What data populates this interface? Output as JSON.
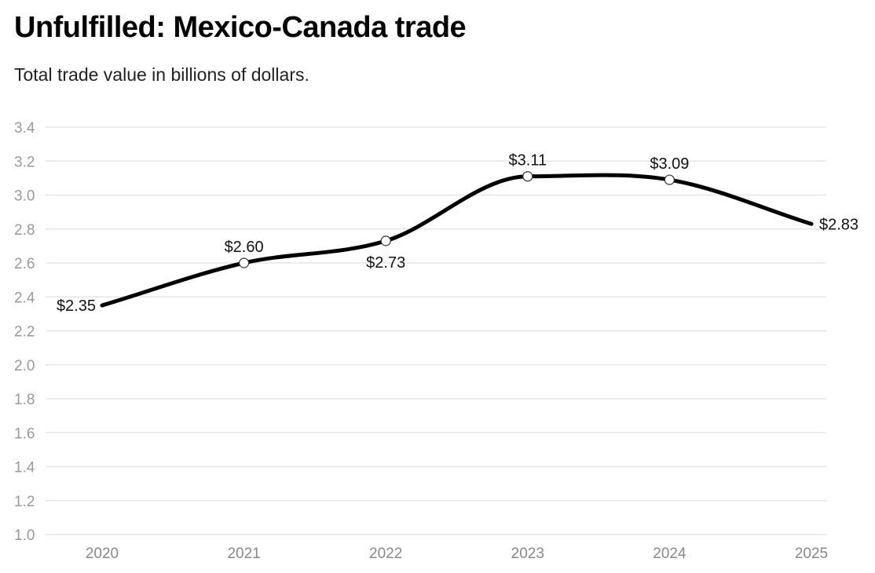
{
  "chart_data": {
    "type": "line",
    "title": "Unfulfilled: Mexico-Canada trade",
    "subtitle": "Total trade value in billions of dollars.",
    "xlabel": "",
    "ylabel": "",
    "categories": [
      "2020",
      "2021",
      "2022",
      "2023",
      "2024",
      "2025"
    ],
    "values": [
      2.35,
      2.6,
      2.73,
      3.11,
      3.09,
      2.83
    ],
    "data_labels": [
      "$2.35",
      "$2.60",
      "$2.73",
      "$3.11",
      "$3.09",
      "$2.83"
    ],
    "ylim": [
      1.0,
      3.4
    ],
    "yticks": [
      "1.0",
      "1.2",
      "1.4",
      "1.6",
      "1.8",
      "2.0",
      "2.2",
      "2.4",
      "2.6",
      "2.8",
      "3.0",
      "3.2",
      "3.4"
    ],
    "grid": true,
    "line_color": "#000000"
  }
}
